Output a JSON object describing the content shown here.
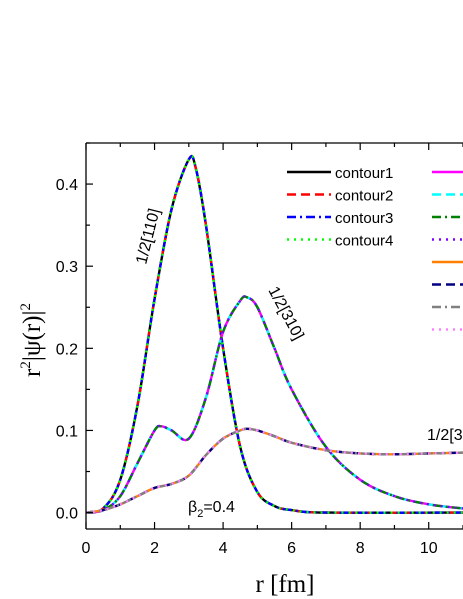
{
  "chart_data": {
    "type": "line",
    "xlabel": "r [fm]",
    "ylabel": "r²|ψ(r)|²",
    "xlim": [
      0,
      11
    ],
    "ylim": [
      -0.02,
      0.45
    ],
    "x_ticks": [
      0,
      2,
      4,
      6,
      8,
      10
    ],
    "x_tick_labels": [
      "0",
      "2",
      "4",
      "6",
      "8",
      "10"
    ],
    "y_ticks": [
      0.0,
      0.1,
      0.2,
      0.3,
      0.4
    ],
    "y_tick_labels": [
      "0.0",
      "0.1",
      "0.2",
      "0.3",
      "0.4"
    ],
    "grid": false,
    "legend_position": "top-right",
    "legend": [
      {
        "name": "contour1",
        "color": "#000000",
        "dash": "solid"
      },
      {
        "name": "contour2",
        "color": "#ff0000",
        "dash": "dash"
      },
      {
        "name": "contour3",
        "color": "#0000ff",
        "dash": "dashdot"
      },
      {
        "name": "contour4",
        "color": "#00ff00",
        "dash": "dot"
      },
      {
        "name": "",
        "color": "#ff00ff",
        "dash": "solid"
      },
      {
        "name": "",
        "color": "#00ffff",
        "dash": "dash"
      },
      {
        "name": "",
        "color": "#008000",
        "dash": "dashdot"
      },
      {
        "name": "",
        "color": "#7f00ff",
        "dash": "dot"
      },
      {
        "name": "",
        "color": "#ff8000",
        "dash": "solid"
      },
      {
        "name": "",
        "color": "#000080",
        "dash": "dash"
      },
      {
        "name": "",
        "color": "#808080",
        "dash": "dashdot"
      },
      {
        "name": "",
        "color": "#ff80ff",
        "dash": "dot"
      }
    ],
    "annotations": [
      {
        "text": "1/2[110]"
      },
      {
        "text": "1/2[310]"
      },
      {
        "text": "1/2[3"
      },
      {
        "text": "β2=0.4"
      }
    ],
    "curves": [
      {
        "label": "1/2[110]",
        "colors": [
          "#000000",
          "#ff0000",
          "#0000ff",
          "#00ff00"
        ],
        "x": [
          0,
          0.5,
          1.0,
          1.5,
          2.0,
          2.5,
          3.0,
          3.2,
          3.5,
          4.0,
          4.5,
          5.0,
          5.5,
          6.0,
          7.0,
          11.0
        ],
        "y": [
          0.0,
          0.005,
          0.04,
          0.13,
          0.26,
          0.37,
          0.43,
          0.42,
          0.35,
          0.2,
          0.08,
          0.025,
          0.008,
          0.003,
          0.0,
          0.0
        ]
      },
      {
        "label": "1/2[310]",
        "colors": [
          "#ff00ff",
          "#00ffff",
          "#008000",
          "#7f00ff"
        ],
        "x": [
          0,
          0.5,
          1.0,
          1.5,
          2.0,
          2.2,
          2.5,
          3.0,
          3.5,
          4.0,
          4.5,
          4.7,
          5.0,
          5.5,
          6.0,
          7.0,
          8.0,
          9.0,
          10.0,
          11.0
        ],
        "y": [
          0.0,
          0.003,
          0.02,
          0.06,
          0.1,
          0.105,
          0.1,
          0.09,
          0.14,
          0.22,
          0.258,
          0.262,
          0.25,
          0.2,
          0.15,
          0.08,
          0.04,
          0.02,
          0.01,
          0.005
        ]
      },
      {
        "label": "1/2[3",
        "colors": [
          "#ff8000",
          "#000080",
          "#808080",
          "#ff80ff"
        ],
        "x": [
          0,
          0.5,
          1.0,
          1.5,
          2.0,
          2.5,
          3.0,
          3.5,
          4.0,
          4.5,
          4.7,
          5.0,
          5.5,
          6.0,
          7.0,
          8.0,
          9.0,
          10.0,
          11.0
        ],
        "y": [
          0.0,
          0.003,
          0.01,
          0.02,
          0.03,
          0.035,
          0.045,
          0.07,
          0.09,
          0.1,
          0.102,
          0.1,
          0.093,
          0.085,
          0.076,
          0.072,
          0.071,
          0.072,
          0.073
        ]
      }
    ]
  }
}
